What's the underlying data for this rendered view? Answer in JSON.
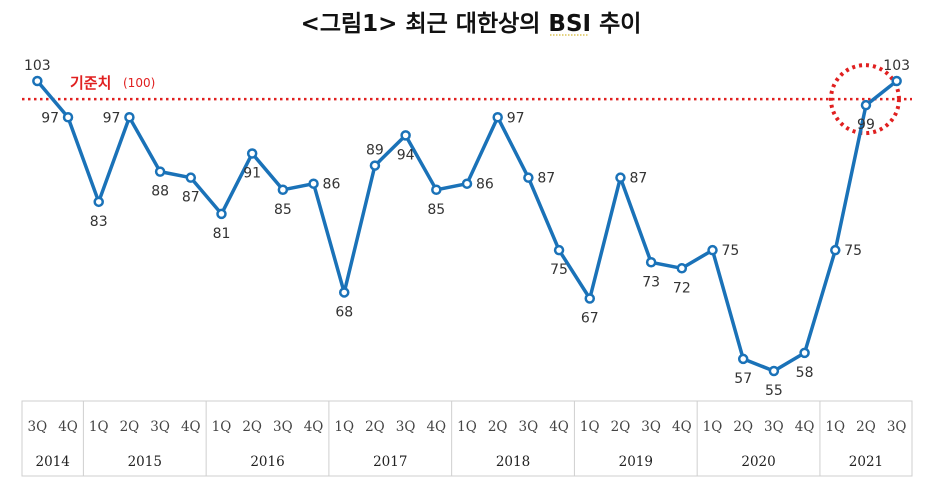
{
  "chart_data": {
    "type": "line",
    "title": "<그림1> 최근 대한상의 BSI 추이",
    "reference_line": {
      "value": 100,
      "label": "기준치",
      "label_suffix": "(100)",
      "color": "#e02020"
    },
    "highlight": {
      "index": 27,
      "color": "#e02020"
    },
    "series": [
      {
        "values": [
          103,
          97,
          83,
          97,
          88,
          87,
          81,
          91,
          85,
          86,
          68,
          89,
          94,
          85,
          86,
          97,
          87,
          75,
          67,
          87,
          73,
          72,
          75,
          57,
          55,
          58,
          75,
          99,
          103
        ],
        "color": "#1a72b8"
      }
    ],
    "x_quarters": [
      "3Q",
      "4Q",
      "1Q",
      "2Q",
      "3Q",
      "4Q",
      "1Q",
      "2Q",
      "3Q",
      "4Q",
      "1Q",
      "2Q",
      "3Q",
      "4Q",
      "1Q",
      "2Q",
      "3Q",
      "4Q",
      "1Q",
      "2Q",
      "3Q",
      "4Q",
      "1Q",
      "2Q",
      "3Q",
      "4Q",
      "1Q",
      "2Q",
      "3Q"
    ],
    "x_years": [
      {
        "label": "2014",
        "span": 2
      },
      {
        "label": "2015",
        "span": 4
      },
      {
        "label": "2016",
        "span": 4
      },
      {
        "label": "2017",
        "span": 4
      },
      {
        "label": "2018",
        "span": 4
      },
      {
        "label": "2019",
        "span": 4
      },
      {
        "label": "2020",
        "span": 4
      },
      {
        "label": "2021",
        "span": 3
      }
    ],
    "label_positions": [
      "above",
      "left",
      "below",
      "left",
      "below",
      "below",
      "below",
      "below",
      "below",
      "right",
      "below",
      "above",
      "below",
      "below",
      "right",
      "right",
      "right",
      "below",
      "below",
      "right",
      "below",
      "below",
      "right",
      "below",
      "below",
      "below",
      "right",
      "below",
      "above"
    ],
    "grid": false,
    "legend": "none"
  }
}
